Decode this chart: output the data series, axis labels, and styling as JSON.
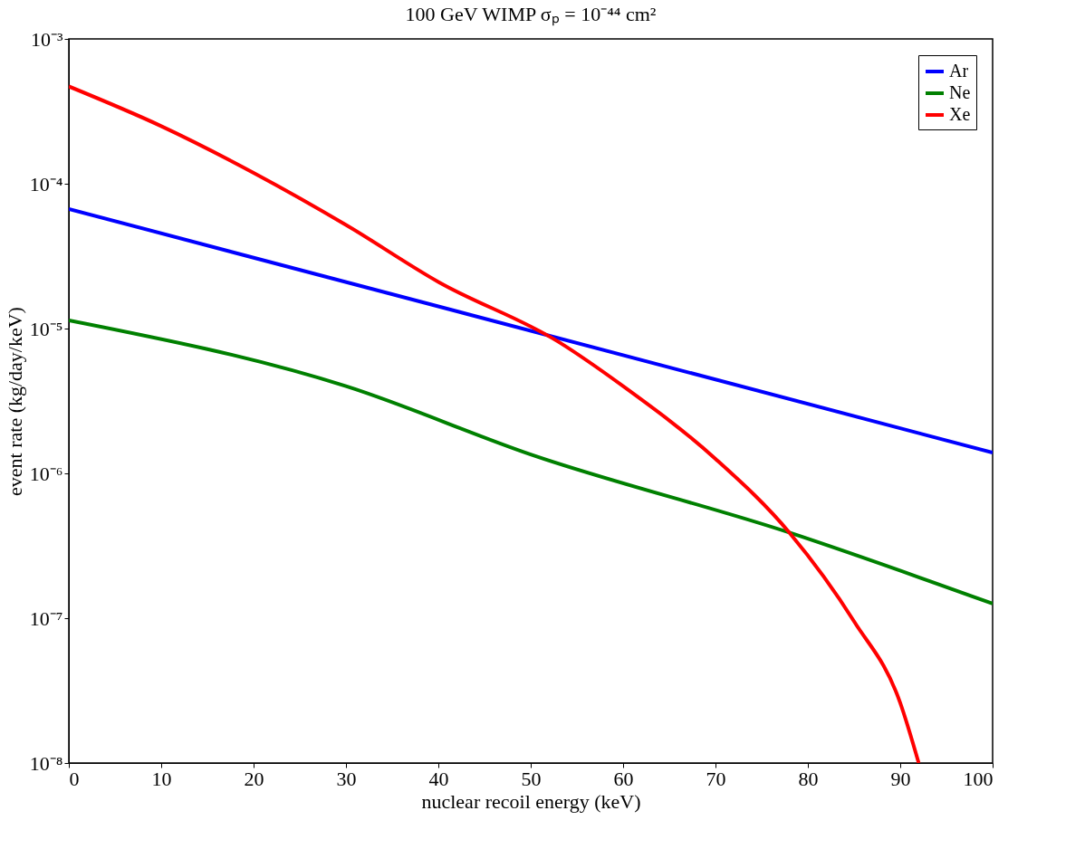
{
  "chart_data": {
    "type": "line",
    "title": "100 GeV WIMP     σₚ = 10⁻⁴⁴ cm²",
    "xlabel": "nuclear recoil energy (keV)",
    "ylabel": "event rate (kg/day/keV)",
    "x": [
      0,
      10,
      20,
      30,
      40,
      53,
      60,
      70,
      78,
      85,
      90,
      92
    ],
    "series": [
      {
        "name": "Ar",
        "color": "#0000ff",
        "x": [
          0,
          100
        ],
        "values": [
          6.7e-05,
          1.39e-06
        ]
      },
      {
        "name": "Ne",
        "color": "#008000",
        "x": [
          0,
          30,
          50,
          78,
          100
        ],
        "values": [
          1.14e-05,
          4e-06,
          1.35e-06,
          3.9e-07,
          1.26e-07
        ]
      },
      {
        "name": "Xe",
        "color": "#ff0000",
        "values": [
          0.00047,
          0.00025,
          0.000119,
          5.2e-05,
          2.1e-05,
          8.1e-06,
          4e-06,
          1.26e-06,
          3.9e-07,
          9.5e-08,
          2.6e-08,
          1e-08
        ]
      }
    ],
    "xlim": [
      0,
      100
    ],
    "xticks": [
      0,
      10,
      20,
      30,
      40,
      50,
      60,
      70,
      80,
      90,
      100
    ],
    "ylim": [
      1e-08,
      0.001
    ],
    "log": "y",
    "yticks": [
      {
        "value": 1e-08,
        "label": "10⁻⁸"
      },
      {
        "value": 1e-07,
        "label": "10⁻⁷"
      },
      {
        "value": 1e-06,
        "label": "10⁻⁶"
      },
      {
        "value": 1e-05,
        "label": "10⁻⁵"
      },
      {
        "value": 0.0001,
        "label": "10⁻⁴"
      },
      {
        "value": 0.001,
        "label": "10⁻³"
      }
    ],
    "grid": false,
    "legend": "top right",
    "marker": "none",
    "line_style": "solid"
  }
}
